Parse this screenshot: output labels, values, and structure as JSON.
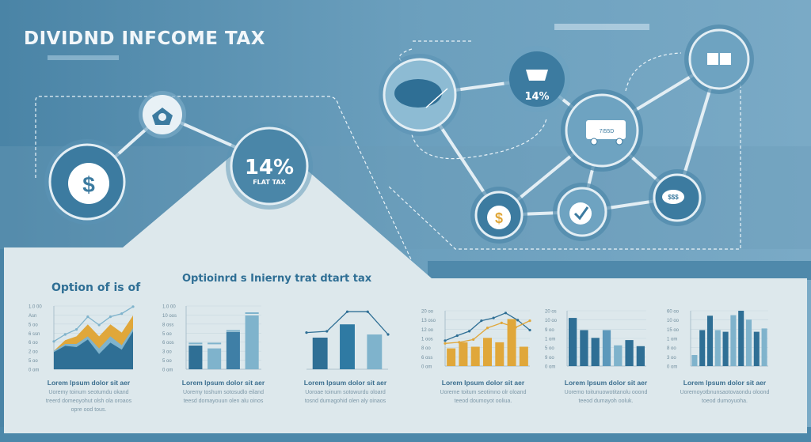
{
  "title": "DIVIDND INFCOME TAX",
  "network": {
    "flat_tax_value": "14%",
    "flat_tax_label": "FLAT TAX",
    "basket_value": "14%",
    "van_label": "7I55D",
    "speech_label": "$$$",
    "dollar_symbol": "$",
    "icons": [
      "piggy-bank-icon",
      "home-camera-icon",
      "globe-icon",
      "basket-icon",
      "van-icon",
      "box-icon",
      "dollar-coin-icon",
      "checkmark-icon",
      "speech-bubble-money-icon"
    ]
  },
  "colors": {
    "primary": "#4c88aa",
    "dark": "#2f6f95",
    "light": "#7fb3cc",
    "accent": "#e0a73a",
    "panel": "#dde8ec"
  },
  "headings": {
    "left": "Option of is of",
    "center": "Optioinrd s Inierny trat dtart tax"
  },
  "chart_data": [
    {
      "type": "area",
      "yticks": [
        "1.0 00",
        "Asn",
        "5 oo",
        "6 ssn",
        "6 oo",
        "2 oo",
        "5 oo",
        "0 om"
      ],
      "ylim": [
        0,
        1
      ],
      "series": [
        {
          "values": [
            0.29,
            0.46,
            0.52,
            0.71,
            0.52,
            0.71,
            0.58,
            0.85
          ],
          "color": "#e0a73a"
        },
        {
          "values": [
            0.29,
            0.4,
            0.4,
            0.52,
            0.33,
            0.52,
            0.38,
            0.65
          ],
          "color": "#7fb3cc"
        },
        {
          "values": [
            0.27,
            0.37,
            0.35,
            0.47,
            0.24,
            0.42,
            0.31,
            0.6
          ],
          "color": "#2f6f95"
        }
      ],
      "line": [
        0.44,
        0.55,
        0.63,
        0.83,
        0.7,
        0.83,
        0.88,
        0.99
      ],
      "caption": "Lorem lpsum dolor sit aer",
      "desc": [
        "Uoremy toinum seotumdu okand",
        "treerd domeoyohut olsh ola oroaos",
        "opre ood tous."
      ]
    },
    {
      "type": "bar",
      "yticks": [
        "1.0 00",
        "10 oos",
        "8 oss",
        "5 oo",
        "6 oos",
        "3 oo",
        "5 oo",
        "0 om"
      ],
      "ylim": [
        0,
        1
      ],
      "values": [
        0.375,
        0.33,
        0.59,
        0.85
      ],
      "caps": [
        0.42,
        0.42,
        0.62,
        0.9
      ],
      "colors": [
        "#2f6f95",
        "#7fb3cc",
        "#3f7fa6",
        "#7fb3cc"
      ],
      "caption": "Lorem lpsum dolor sit aer",
      "desc": [
        "Uoremy toshum sotosudlo eiland",
        "teesd domayouun olen alu oinos"
      ]
    },
    {
      "type": "bar-line",
      "yticks": [],
      "ylim": [
        0,
        1
      ],
      "values": [
        0.5,
        0.71,
        0.55
      ],
      "colors": [
        "#2f6f95",
        "#2f7aa3",
        "#7fb3cc"
      ],
      "line": [
        0.58,
        0.6,
        0.91,
        0.91,
        0.55
      ],
      "caption": "Lorem lpsum dolor sit aer",
      "desc": [
        "Uoroae toinum sotowurdu oloard",
        "tosnd dumagohid olen aly oinaos"
      ]
    },
    {
      "type": "bar-line",
      "yticks": [
        "20 oo",
        "13 oso",
        "12 oo",
        "1 oos",
        "8 oo",
        "6 oss",
        "0 om"
      ],
      "ylim": [
        0,
        1
      ],
      "values": [
        0.32,
        0.43,
        0.35,
        0.51,
        0.43,
        0.85,
        0.35
      ],
      "colors": [
        "#e0a73a"
      ],
      "line": [
        0.46,
        0.55,
        0.63,
        0.82,
        0.87,
        0.96,
        0.83,
        0.65
      ],
      "line2": [
        0.41,
        0.43,
        0.48,
        0.69,
        0.78,
        0.7,
        0.82
      ],
      "caption": "Lorem lpsum dolor sit aer",
      "desc": [
        "Uoreme toitum seotimno olr oloand",
        "teeod doumoyot ooliua."
      ]
    },
    {
      "type": "bar",
      "yticks": [
        "20 os",
        "10 oo",
        "9 oo",
        "1 om",
        "5 oo",
        "9 oo",
        "0 om"
      ],
      "ylim": [
        0,
        1
      ],
      "values": [
        0.87,
        0.65,
        0.51,
        0.65,
        0.375,
        0.47,
        0.36
      ],
      "colors": [
        "#2f6f95",
        "#2f6f95",
        "#2f6f95",
        "#5c98bb",
        "#7fb3cc",
        "#2f6f95",
        "#2f6f95"
      ],
      "caption": "Lorem lpsum dolor sit aer",
      "desc": [
        "Uoremo toitunuowotitanolu ooond",
        "teeod dumayoh ooluk."
      ]
    },
    {
      "type": "bar",
      "yticks": [
        "60 oo",
        "10 oo",
        "15 oo",
        "1 om",
        "8 oo",
        "3 oo",
        "0 om"
      ],
      "ylim": [
        0,
        1
      ],
      "values": [
        0.2,
        0.65,
        0.91,
        0.65,
        0.62,
        0.92,
        1.0,
        0.84,
        0.62,
        0.68
      ],
      "colors": [
        "#7fb3cc",
        "#2f6f95",
        "#2f6f95",
        "#7fb3cc",
        "#2f6f95",
        "#7fb3cc",
        "#2f6f95",
        "#7fb3cc",
        "#2f6f95",
        "#7fb3cc"
      ],
      "caption": "Lorem lpsum dolor sit aer",
      "desc": [
        "Uoremoyotbnunsaotovaondu oloond",
        "toeod dumoyuoha."
      ]
    }
  ]
}
